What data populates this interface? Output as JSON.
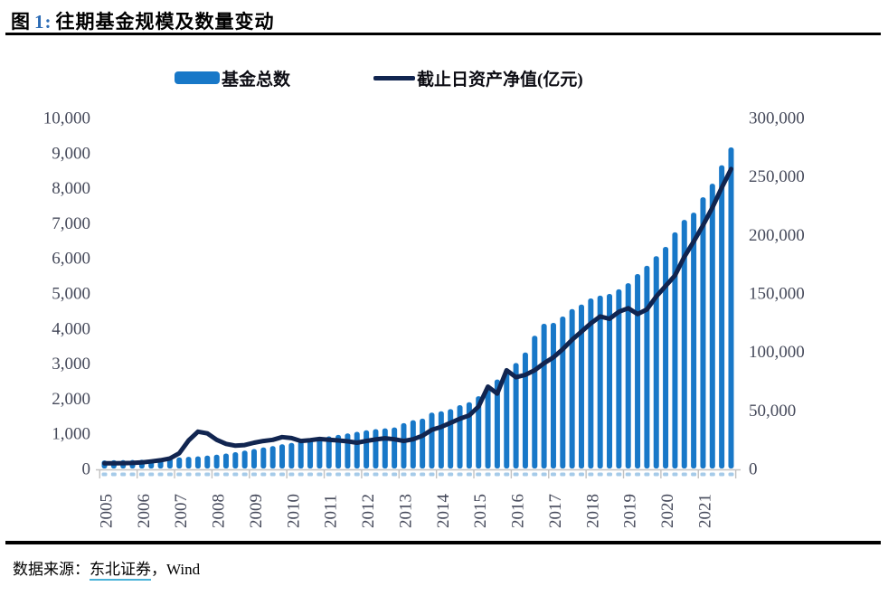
{
  "figure": {
    "title_prefix": "图",
    "title_number": "1:",
    "title_text": "往期基金规模及数量变动",
    "source_label": "数据来源：",
    "source_link": "东北证券",
    "source_suffix": "，Wind"
  },
  "legend": {
    "items": [
      {
        "label": "基金总数",
        "type": "bar",
        "color": "#1878C8"
      },
      {
        "label": "截止日资产净值(亿元)",
        "type": "line",
        "color": "#112550"
      }
    ]
  },
  "chart_data": {
    "type": "combo-bar-line",
    "title": "往期基金规模及数量变动",
    "grid": false,
    "legend_position": "top",
    "points_per_year": 4,
    "x_years": [
      "2005",
      "2006",
      "2007",
      "2008",
      "2009",
      "2010",
      "2011",
      "2012",
      "2013",
      "2014",
      "2015",
      "2016",
      "2017",
      "2018",
      "2019",
      "2020",
      "2021"
    ],
    "quarters": [
      "2005Q1",
      "2005Q2",
      "2005Q3",
      "2005Q4",
      "2006Q1",
      "2006Q2",
      "2006Q3",
      "2006Q4",
      "2007Q1",
      "2007Q2",
      "2007Q3",
      "2007Q4",
      "2008Q1",
      "2008Q2",
      "2008Q3",
      "2008Q4",
      "2009Q1",
      "2009Q2",
      "2009Q3",
      "2009Q4",
      "2010Q1",
      "2010Q2",
      "2010Q3",
      "2010Q4",
      "2011Q1",
      "2011Q2",
      "2011Q3",
      "2011Q4",
      "2012Q1",
      "2012Q2",
      "2012Q3",
      "2012Q4",
      "2013Q1",
      "2013Q2",
      "2013Q3",
      "2013Q4",
      "2014Q1",
      "2014Q2",
      "2014Q3",
      "2014Q4",
      "2015Q1",
      "2015Q2",
      "2015Q3",
      "2015Q4",
      "2016Q1",
      "2016Q2",
      "2016Q3",
      "2016Q4",
      "2017Q1",
      "2017Q2",
      "2017Q3",
      "2017Q4",
      "2018Q1",
      "2018Q2",
      "2018Q3",
      "2018Q4",
      "2019Q1",
      "2019Q2",
      "2019Q3",
      "2019Q4",
      "2020Q1",
      "2020Q2",
      "2020Q3",
      "2020Q4",
      "2021Q1",
      "2021Q2",
      "2021Q3",
      "2021Q4"
    ],
    "left_axis": {
      "min": 0,
      "max": 10000,
      "step": 1000,
      "ticks": [
        "0",
        "1,000",
        "2,000",
        "3,000",
        "4,000",
        "5,000",
        "6,000",
        "7,000",
        "8,000",
        "9,000",
        "10,000"
      ]
    },
    "right_axis": {
      "min": 0,
      "max": 300000,
      "step": 50000,
      "ticks": [
        "0",
        "50,000",
        "100,000",
        "150,000",
        "200,000",
        "250,000",
        "300,000"
      ]
    },
    "colors": {
      "bar": "#1878C8",
      "bar_base_tick": "#A6CBE9",
      "line": "#112550",
      "axis": "#c2c2c2"
    },
    "series": [
      {
        "name": "基金总数",
        "type": "bar",
        "axis": "left",
        "values": [
          230,
          235,
          238,
          242,
          248,
          258,
          272,
          295,
          315,
          332,
          345,
          368,
          395,
          425,
          465,
          510,
          555,
          600,
          640,
          690,
          730,
          775,
          820,
          870,
          915,
          955,
          1000,
          1045,
          1090,
          1120,
          1145,
          1170,
          1290,
          1375,
          1420,
          1590,
          1630,
          1690,
          1805,
          1890,
          2060,
          2275,
          2535,
          2835,
          3005,
          3305,
          3780,
          4125,
          4150,
          4330,
          4540,
          4670,
          4845,
          4925,
          4975,
          5105,
          5280,
          5540,
          5775,
          6050,
          6315,
          6730,
          7085,
          7290,
          7730,
          8115,
          8640,
          9150
        ]
      },
      {
        "name": "截止日资产净值(亿元)",
        "type": "line",
        "axis": "right",
        "values": [
          4400,
          4500,
          4600,
          4700,
          5200,
          6000,
          7000,
          8600,
          13000,
          24000,
          31500,
          30000,
          24500,
          21000,
          19500,
          20000,
          22000,
          23500,
          24500,
          26800,
          26000,
          23500,
          24200,
          25200,
          24500,
          24000,
          23200,
          22000,
          23500,
          24800,
          25800,
          25000,
          23500,
          25000,
          28000,
          33000,
          35500,
          39000,
          42500,
          45400,
          53000,
          70000,
          64000,
          84000,
          78000,
          80000,
          84000,
          90000,
          95000,
          102000,
          110000,
          117000,
          124000,
          130000,
          128000,
          134000,
          137000,
          132000,
          136000,
          147000,
          156000,
          165000,
          181000,
          194000,
          208000,
          223000,
          240000,
          256000
        ]
      }
    ]
  }
}
